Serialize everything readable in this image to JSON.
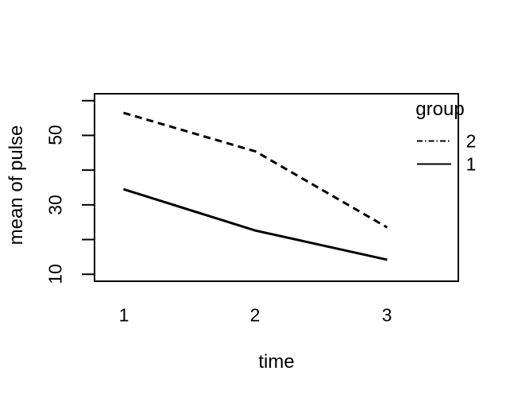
{
  "chart_data": {
    "type": "line",
    "title": "",
    "xlabel": "time",
    "ylabel": "mean of pulse",
    "x": [
      1,
      2,
      3
    ],
    "series": [
      {
        "name": "2",
        "style": "dashed",
        "values": [
          56.5,
          45.4,
          23.5
        ]
      },
      {
        "name": "1",
        "style": "solid",
        "values": [
          34.5,
          22.6,
          14.2
        ]
      }
    ],
    "xaxis": {
      "ticks": [
        1,
        2,
        3
      ],
      "tick_labels": [
        "1",
        "2",
        "3"
      ],
      "tick_marks_drawn": false
    },
    "yaxis": {
      "ticks": [
        10,
        20,
        30,
        40,
        50,
        60
      ],
      "labeled_ticks": [
        10,
        30,
        50
      ],
      "tick_labels": [
        "10",
        "30",
        "50"
      ],
      "label_rotation": "parallel-to-axis"
    },
    "xlim": [
      0.78,
      3.54
    ],
    "ylim": [
      8,
      62
    ],
    "grid": false,
    "legend": {
      "title": "group",
      "position": "topright",
      "frame": false,
      "entries": [
        {
          "label": "2",
          "line": "dashed"
        },
        {
          "label": "1",
          "line": "solid"
        }
      ]
    },
    "colors": {
      "foreground": "#000000",
      "background": "#ffffff"
    }
  }
}
